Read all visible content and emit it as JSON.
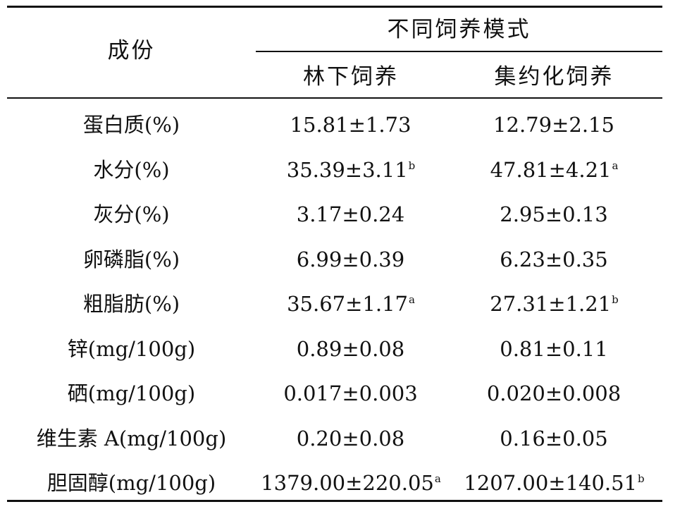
{
  "table": {
    "header": {
      "component": "成份",
      "group": "不同饲养模式",
      "col1": "林下饲养",
      "col2": "集约化饲养"
    },
    "rows": [
      {
        "name": "蛋白质(%)",
        "v1": "15.81±1.73",
        "s1": "",
        "v2": "12.79±2.15",
        "s2": ""
      },
      {
        "name": "水分(%)",
        "v1": "35.39±3.11",
        "s1": "b",
        "v2": "47.81±4.21",
        "s2": "a"
      },
      {
        "name": "灰分(%)",
        "v1": "3.17±0.24",
        "s1": "",
        "v2": "2.95±0.13",
        "s2": ""
      },
      {
        "name": "卵磷脂(%)",
        "v1": "6.99±0.39",
        "s1": "",
        "v2": "6.23±0.35",
        "s2": ""
      },
      {
        "name": "粗脂肪(%)",
        "v1": "35.67±1.17",
        "s1": "a",
        "v2": "27.31±1.21",
        "s2": "b"
      },
      {
        "name": "锌(mg/100g)",
        "v1": "0.89±0.08",
        "s1": "",
        "v2": "0.81±0.11",
        "s2": ""
      },
      {
        "name": "硒(mg/100g)",
        "v1": "0.017±0.003",
        "s1": "",
        "v2": "0.020±0.008",
        "s2": ""
      },
      {
        "name": "维生素 A(mg/100g)",
        "v1": "0.20±0.08",
        "s1": "",
        "v2": "0.16±0.05",
        "s2": ""
      },
      {
        "name": "胆固醇(mg/100g)",
        "v1": "1379.00±220.05",
        "s1": "a",
        "v2": "1207.00±140.51",
        "s2": "b"
      }
    ]
  }
}
